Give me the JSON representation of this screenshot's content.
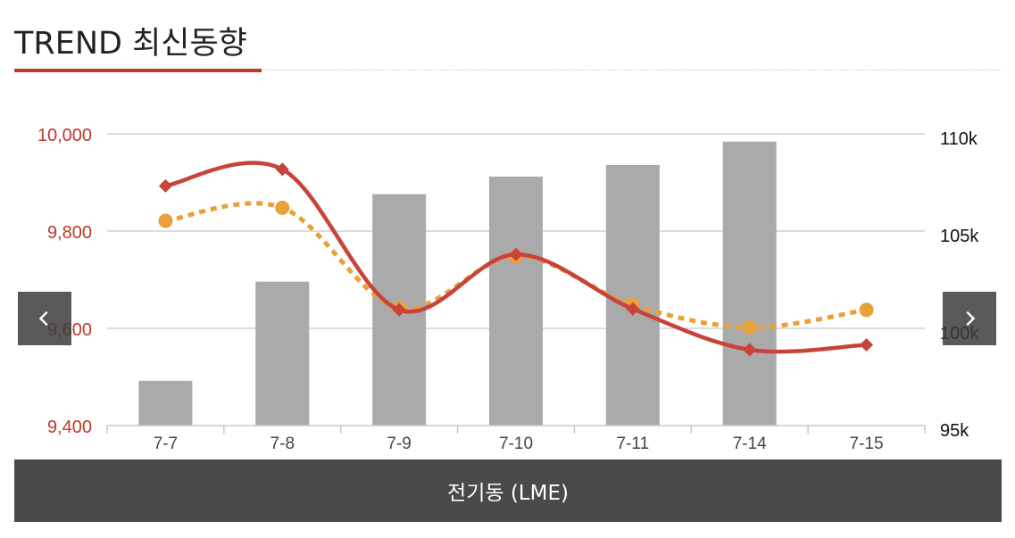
{
  "header": {
    "title": "TREND 최신동향"
  },
  "caption": "전기동 (LME)",
  "nav": {
    "prev_icon": "chevron-left-icon",
    "next_icon": "chevron-right-icon"
  },
  "colors": {
    "accent": "#c0392b",
    "bar": "#aaaaaa",
    "line_solid": "#c8433a",
    "line_dotted": "#e8a03a",
    "caption_bg": "#4a4a4a"
  },
  "chart_data": {
    "type": "bar",
    "categories": [
      "7-7",
      "7-8",
      "7-9",
      "7-10",
      "7-11",
      "7-14",
      "7-15"
    ],
    "left_axis": {
      "ticks": [
        "10,000",
        "9,800",
        "9,600",
        "9,400"
      ],
      "ylim": [
        9400,
        10000
      ],
      "color": "#c0392b"
    },
    "right_axis": {
      "ticks": [
        "110k",
        "105k",
        "100k",
        "95k"
      ],
      "ylim": [
        95000,
        110000
      ]
    },
    "grid": true,
    "series": [
      {
        "kind": "bar",
        "axis": "right",
        "values": [
          97300,
          102400,
          106900,
          107800,
          108400,
          109600,
          null
        ]
      },
      {
        "kind": "line",
        "style": "solid",
        "marker": "diamond",
        "axis": "left",
        "values": [
          9893,
          9927,
          9638,
          9752,
          9640,
          9556,
          9566
        ]
      },
      {
        "kind": "line",
        "style": "dotted",
        "marker": "circle",
        "axis": "left",
        "values": [
          9821,
          9848,
          9642,
          9748,
          9648,
          9602,
          9638
        ]
      }
    ]
  }
}
